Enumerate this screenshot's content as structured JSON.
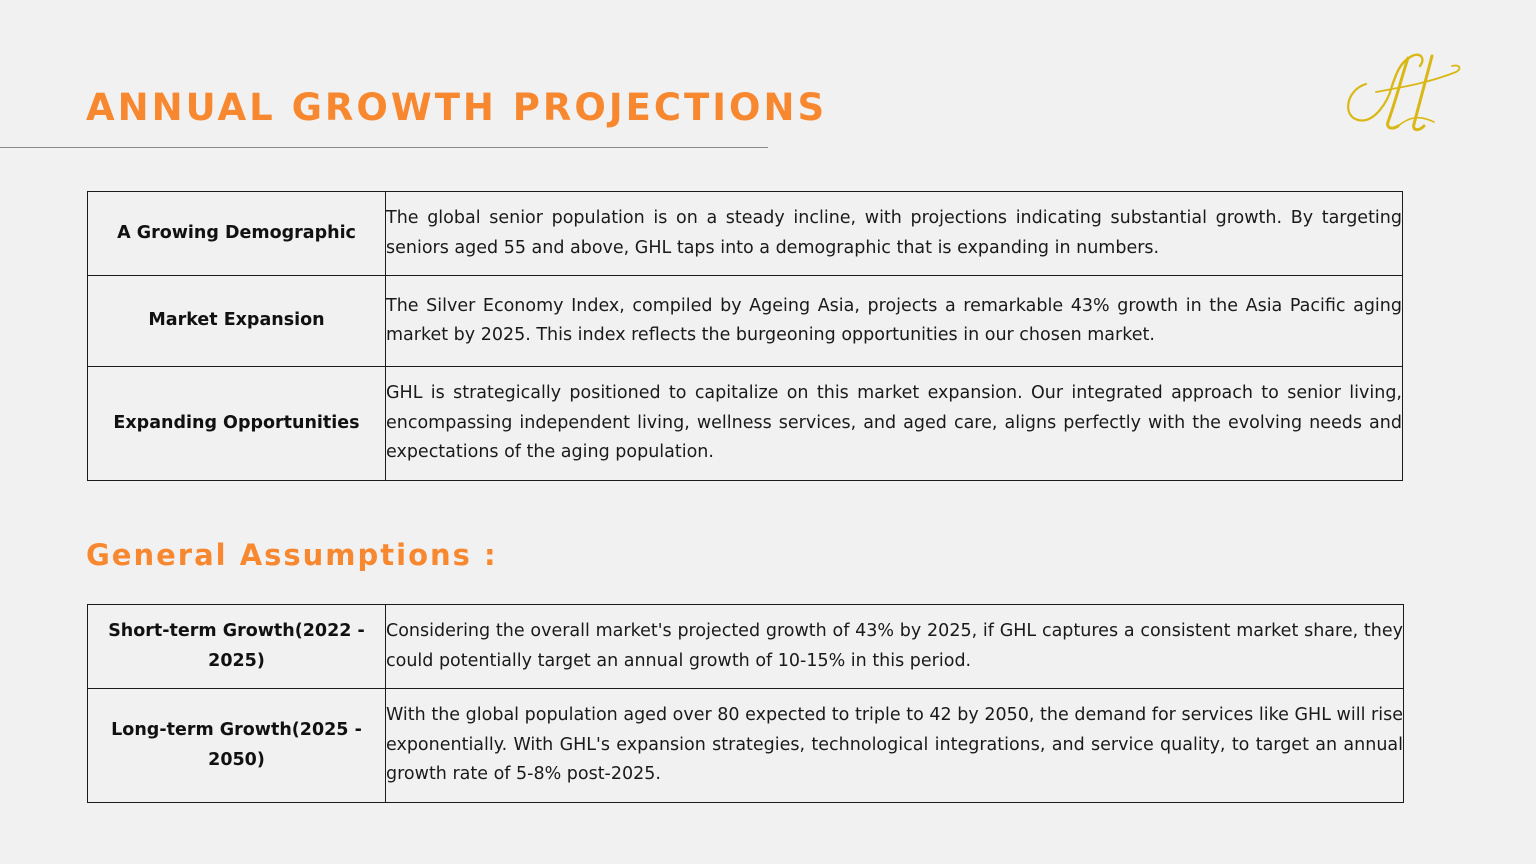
{
  "header": {
    "title": "ANNUAL GROWTH PROJECTIONS"
  },
  "logo": {
    "icon": "monogram-logo-icon",
    "color": "#d9b816"
  },
  "projections": [
    {
      "label": "A Growing Demographic",
      "text": "The global senior population is on a steady incline, with projections indicating substantial growth. By targeting seniors aged 55 and above, GHL taps into a demographic that is expanding in numbers."
    },
    {
      "label": "Market Expansion",
      "text": "The Silver Economy Index, compiled by Ageing Asia, projects a remarkable 43% growth in the Asia Pacific aging market by 2025. This index reflects the burgeoning opportunities in our chosen market."
    },
    {
      "label": "Expanding Opportunities",
      "text": "GHL is strategically positioned to capitalize on this market expansion. Our integrated approach to senior living, encompassing independent living, wellness services, and aged care, aligns perfectly with the evolving needs and expectations of the aging population."
    }
  ],
  "assumptions_section": {
    "title": "General Assumptions :"
  },
  "assumptions": [
    {
      "label": "Short-term Growth(2022 - 2025)",
      "text": "Considering the overall market's projected growth of 43% by 2025, if GHL captures a consistent market share, they could potentially target an annual growth of 10-15% in this period."
    },
    {
      "label": "Long-term Growth(2025 - 2050)",
      "text": "With the global population aged over 80 expected to triple to 42 by 2050, the demand for services like GHL will rise exponentially. With GHL's expansion strategies, technological integrations, and service quality, to target an annual growth rate of 5-8% post-2025."
    }
  ],
  "colors": {
    "accent": "#f7882f",
    "background": "#f1f1f1",
    "border": "#1b1b1b"
  }
}
